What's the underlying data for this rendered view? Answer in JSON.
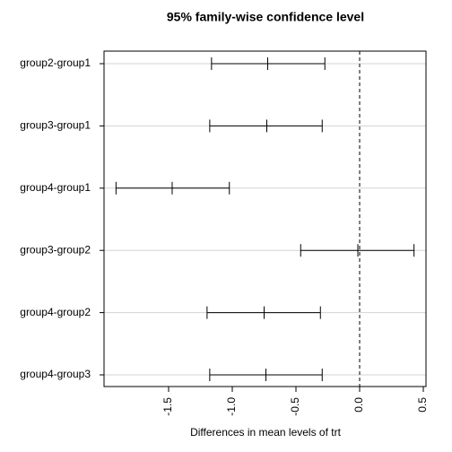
{
  "chart_data": {
    "type": "interval",
    "title": "95% family-wise confidence level",
    "x_label": "Differences in mean levels of trt",
    "categories": [
      "group2-group1",
      "group3-group1",
      "group4-group1",
      "group3-group2",
      "group4-group2",
      "group4-group3"
    ],
    "values": [
      -0.722,
      -0.729,
      -1.472,
      -0.014,
      -0.75,
      -0.736
    ],
    "lower": [
      -1.163,
      -1.177,
      -1.913,
      -0.463,
      -1.198,
      -1.177
    ],
    "upper": [
      -0.273,
      -0.294,
      -1.023,
      0.427,
      -0.308,
      -0.294
    ],
    "color": "#000000",
    "xlim": [
      -2.007,
      0.521
    ],
    "xticks": [
      -1.5,
      {
        "value": -1,
        "label": "-1.0"
      },
      -0.5,
      {
        "value": 0,
        "label": "0.0"
      },
      0.5
    ],
    "reference_line": 0,
    "grid": true
  }
}
